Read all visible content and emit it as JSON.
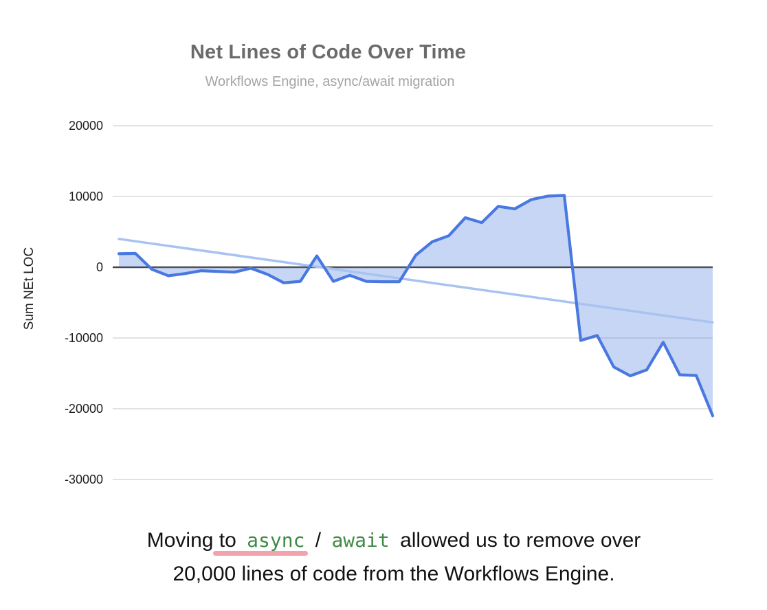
{
  "header": {
    "title": "Net Lines of Code Over Time",
    "subtitle": "Workflows Engine, async/await migration"
  },
  "chart_data": {
    "type": "area",
    "title": "Net Lines of Code Over Time",
    "subtitle": "Workflows Engine, async/await migration",
    "xlabel": "",
    "ylabel": "Sum NEt LOC",
    "x_axis_labels": "none",
    "legend": "none",
    "grid": true,
    "ylim": [
      -30000,
      20000
    ],
    "yticks": [
      20000,
      10000,
      0,
      -10000,
      -20000,
      -30000
    ],
    "baseline": 0,
    "series_name": "Sum NEt LOC",
    "values": [
      1900,
      1950,
      -300,
      -1200,
      -900,
      -500,
      -600,
      -700,
      -150,
      -1000,
      -2200,
      -2000,
      1600,
      -2000,
      -1150,
      -2000,
      -2050,
      -2050,
      1700,
      3600,
      4450,
      7000,
      6300,
      8600,
      8250,
      9550,
      10050,
      10150,
      -10350,
      -9650,
      -14100,
      -15350,
      -14500,
      -10600,
      -15200,
      -15300,
      -21000
    ],
    "trendline": {
      "start_value": 4000,
      "end_value": -7800
    }
  },
  "colors": {
    "title": "#6b6b6b",
    "subtitle": "#a5a5a5",
    "line": "#4878e0",
    "fill": "rgba(72,119,224,0.30)",
    "trendline": "#a8c3f0",
    "gridline": "#e2e2e2",
    "zero_line": "#484848",
    "tick_text": "#1f1f1f",
    "caption_text": "#121212",
    "code_green": "#3f8b45",
    "underline_pink": "#f2a1ad"
  },
  "caption": {
    "line1_segments": [
      {
        "text": "Moving to ",
        "kind": "text"
      },
      {
        "text": "async",
        "kind": "code",
        "underlined": true
      },
      {
        "text": " / ",
        "kind": "text"
      },
      {
        "text": "await",
        "kind": "code"
      },
      {
        "text": " allowed us to remove over",
        "kind": "text"
      }
    ],
    "line2": "20,000 lines of code from the Workflows Engine."
  }
}
